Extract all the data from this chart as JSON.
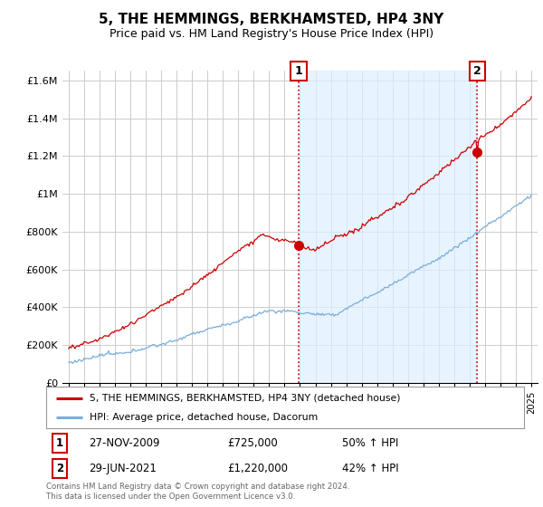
{
  "title": "5, THE HEMMINGS, BERKHAMSTED, HP4 3NY",
  "subtitle": "Price paid vs. HM Land Registry's House Price Index (HPI)",
  "title_fontsize": 11,
  "subtitle_fontsize": 9,
  "sale1_date": 2009.92,
  "sale1_price": 725000,
  "sale1_label": "27-NOV-2009",
  "sale1_price_str": "£725,000",
  "sale1_pct": "50%",
  "sale2_date": 2021.49,
  "sale2_price": 1220000,
  "sale2_label": "29-JUN-2021",
  "sale2_price_str": "£1,220,000",
  "sale2_pct": "42%",
  "property_color": "#cc0000",
  "hpi_color": "#7aaddb",
  "shade_color": "#ddeeff",
  "background_color": "#ffffff",
  "grid_color": "#cccccc",
  "ylim": [
    0,
    1650000
  ],
  "xlim": [
    1994.6,
    2025.4
  ],
  "legend_label1": "5, THE HEMMINGS, BERKHAMSTED, HP4 3NY (detached house)",
  "legend_label2": "HPI: Average price, detached house, Dacorum",
  "footnote": "Contains HM Land Registry data © Crown copyright and database right 2024.\nThis data is licensed under the Open Government Licence v3.0.",
  "yticks": [
    0,
    200000,
    400000,
    600000,
    800000,
    1000000,
    1200000,
    1400000,
    1600000
  ],
  "ytick_labels": [
    "£0",
    "£200K",
    "£400K",
    "£600K",
    "£800K",
    "£1M",
    "£1.2M",
    "£1.4M",
    "£1.6M"
  ]
}
